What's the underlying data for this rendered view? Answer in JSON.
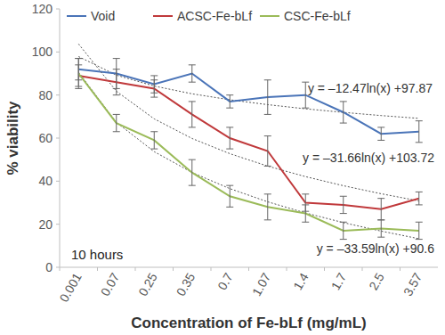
{
  "chart_data": {
    "type": "line",
    "x_label": "Concentration of Fe-bLf (mg/mL)",
    "y_label": "% viability",
    "categories": [
      "0.001",
      "0.07",
      "0.25",
      "0.35",
      "0.7",
      "1.07",
      "1.4",
      "1.7",
      "2.5",
      "3.57"
    ],
    "ylim": [
      0,
      120
    ],
    "yticks": [
      0,
      20,
      40,
      60,
      80,
      100,
      120
    ],
    "grid": false,
    "legend": "top",
    "annotations": [
      "10 hours"
    ],
    "series": [
      {
        "name": "Void",
        "color": "#4a74b8",
        "marker": "none",
        "line_style": "solid",
        "values": [
          92,
          90,
          85,
          90,
          77,
          79,
          80,
          72,
          62,
          63
        ],
        "errors": [
          5,
          7,
          4,
          4,
          3,
          8,
          6,
          5,
          3,
          5
        ],
        "equation": "y = –12.47ln(x) +97.87",
        "trendline": [
          97.87,
          89.23,
          84.17,
          80.58,
          77.8,
          75.53,
          73.6,
          71.94,
          70.47,
          69.16
        ]
      },
      {
        "name": "ACSC-Fe-bLf",
        "color": "#c0393b",
        "marker": "none",
        "line_style": "solid",
        "values": [
          89,
          86,
          83,
          71,
          60,
          54,
          30,
          29,
          27,
          32
        ],
        "errors": [
          5,
          6,
          4,
          6,
          5,
          7,
          4,
          4,
          5,
          3
        ],
        "equation": "y = –31.66ln(x) +103.72",
        "trendline": [
          103.72,
          81.78,
          68.94,
          59.83,
          52.77,
          46.99,
          42.11,
          37.89,
          34.16,
          30.82
        ]
      },
      {
        "name": "CSC-Fe-bLf",
        "color": "#9bbb59",
        "marker": "none",
        "line_style": "solid",
        "values": [
          90,
          67,
          59,
          44,
          33,
          28,
          25,
          17,
          18,
          17
        ],
        "errors": [
          7,
          4,
          4,
          6,
          5,
          6,
          4,
          4,
          4,
          4
        ],
        "equation": "y = –33.59ln(x) +90.6",
        "trendline": [
          90.6,
          67.32,
          53.7,
          44.03,
          36.54,
          30.41,
          25.24,
          20.75,
          16.8,
          13.26
        ]
      }
    ]
  }
}
